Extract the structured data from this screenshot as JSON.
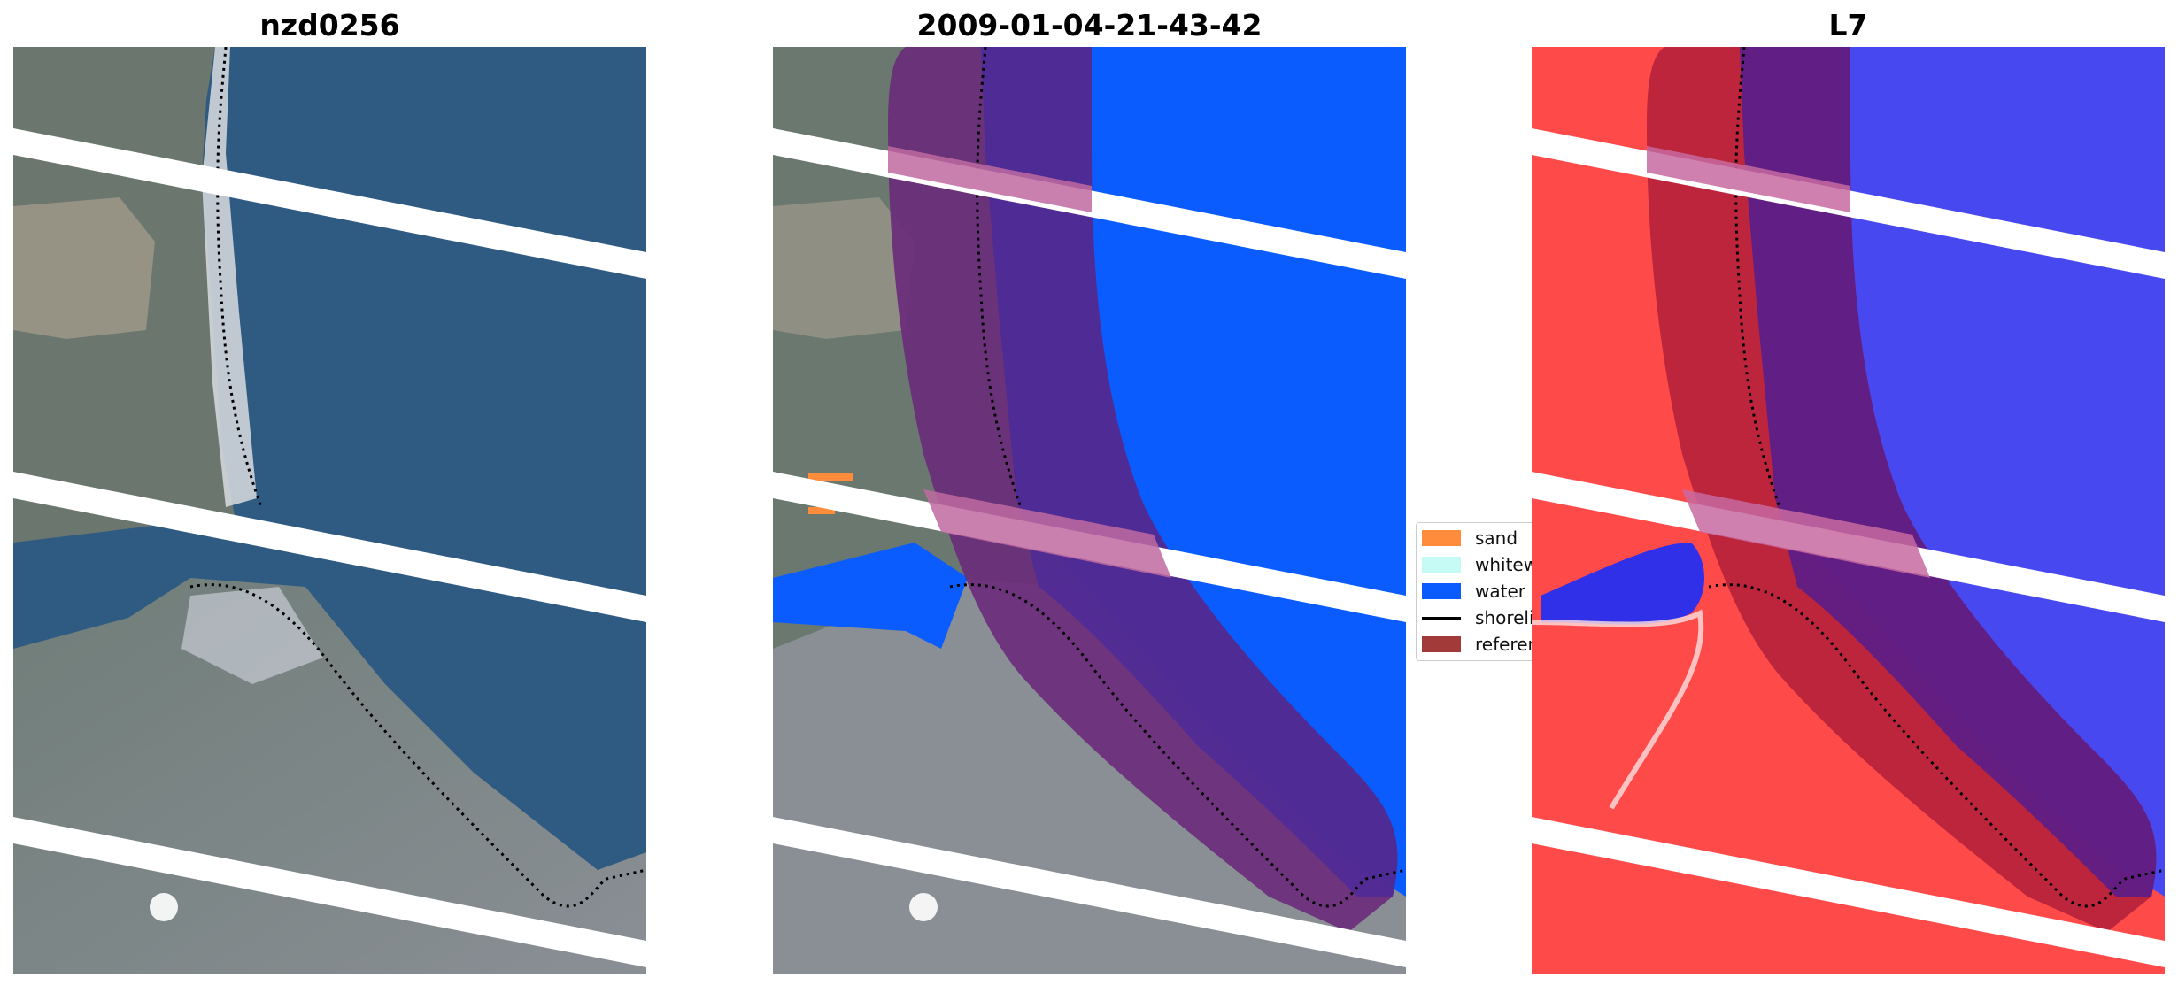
{
  "titles": {
    "left": "nzd0256",
    "middle": "2009-01-04-21-43-42",
    "right": "L7"
  },
  "legend": {
    "items": [
      {
        "label": "sand",
        "color": "#ff8c3a",
        "kind": "patch"
      },
      {
        "label": "whitewater",
        "color": "#c6fbf5",
        "kind": "patch"
      },
      {
        "label": "water",
        "color": "#0a5cff",
        "kind": "patch"
      },
      {
        "label": "shoreline",
        "color": "#000000",
        "kind": "line"
      },
      {
        "label": "reference",
        "color": "#a33a3a",
        "kind": "patch"
      }
    ]
  },
  "colors": {
    "water_class": "#0a5cff",
    "sand_class": "#ff8c3a",
    "reference_buffer": "#a33a3a",
    "shoreline": "#000000",
    "index_positive": "#ff3333",
    "index_negative": "#2222ff"
  }
}
